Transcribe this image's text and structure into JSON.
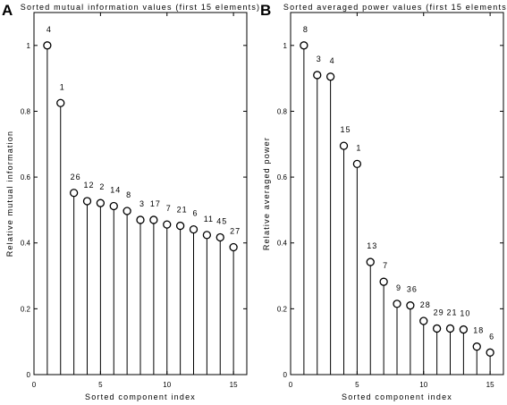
{
  "chart_data": [
    {
      "type": "stem",
      "panel": "A",
      "title": "Sorted mutual information values (first 15 elements)",
      "xlabel": "Sorted component index",
      "ylabel": "Relative mutual information",
      "xlim": [
        0,
        16
      ],
      "ylim": [
        0,
        1.1
      ],
      "xticks": [
        0,
        5,
        10,
        15
      ],
      "yticks": [
        0,
        0.2,
        0.4,
        0.6,
        0.8,
        1
      ],
      "x": [
        1,
        2,
        3,
        4,
        5,
        6,
        7,
        8,
        9,
        10,
        11,
        12,
        13,
        14,
        15
      ],
      "values": [
        1.0,
        0.825,
        0.552,
        0.527,
        0.521,
        0.512,
        0.497,
        0.47,
        0.47,
        0.456,
        0.452,
        0.441,
        0.424,
        0.417,
        0.387
      ],
      "labels": [
        "4",
        "1",
        "26",
        "12",
        "2",
        "14",
        "8",
        "3",
        "17",
        "7",
        "21",
        "6",
        "11",
        "45",
        "27"
      ],
      "grid": false
    },
    {
      "type": "stem",
      "panel": "B",
      "title": "Sorted averaged power values (first 15 elements)",
      "xlabel": "Sorted component index",
      "ylabel": "Relative averaged power",
      "xlim": [
        0,
        16
      ],
      "ylim": [
        0,
        1.1
      ],
      "xticks": [
        0,
        5,
        10,
        15
      ],
      "yticks": [
        0,
        0.2,
        0.4,
        0.6,
        0.8,
        1
      ],
      "x": [
        1,
        2,
        3,
        4,
        5,
        6,
        7,
        8,
        9,
        10,
        11,
        12,
        13,
        14,
        15
      ],
      "values": [
        1.0,
        0.91,
        0.905,
        0.695,
        0.64,
        0.342,
        0.282,
        0.215,
        0.21,
        0.163,
        0.14,
        0.14,
        0.137,
        0.085,
        0.067
      ],
      "labels": [
        "8",
        "3",
        "4",
        "15",
        "1",
        "13",
        "7",
        "9",
        "36",
        "28",
        "29",
        "21",
        "10",
        "18",
        "6"
      ],
      "grid": false
    }
  ]
}
